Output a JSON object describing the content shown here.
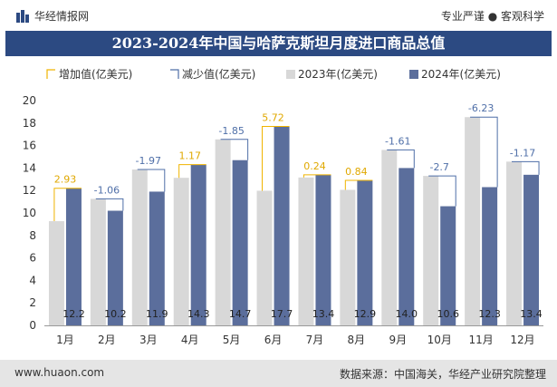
{
  "header": {
    "brand": "华经情报网",
    "tagline": "专业严谨 ● 客观科学"
  },
  "title": "2023-2024年中国与哈萨克斯坦月度进口商品总值",
  "footer": {
    "url": "www.huaon.com",
    "source": "数据来源：中国海关，华经产业研究院整理"
  },
  "colors": {
    "bar2023": "#d8d8d8",
    "bar2024": "#5b6e9c",
    "increase": "#f0b400",
    "decrease": "#4f6fa8",
    "title_bg": "#2c4a82"
  },
  "chart_data": {
    "type": "bar",
    "categories": [
      "1月",
      "2月",
      "3月",
      "4月",
      "5月",
      "6月",
      "7月",
      "8月",
      "9月",
      "10月",
      "11月",
      "12月"
    ],
    "legend": [
      "增加值(亿美元)",
      "减少值(亿美元)",
      "2023年(亿美元)",
      "2024年(亿美元)"
    ],
    "series": [
      {
        "name": "2023年(亿美元)",
        "values": [
          9.27,
          11.26,
          13.87,
          13.13,
          16.55,
          11.98,
          13.16,
          12.06,
          15.61,
          13.3,
          18.53,
          14.57
        ]
      },
      {
        "name": "2024年(亿美元)",
        "values": [
          12.2,
          10.2,
          11.9,
          14.3,
          14.7,
          17.7,
          13.4,
          12.9,
          14.0,
          10.6,
          12.3,
          13.4
        ]
      }
    ],
    "change_labels": [
      "2.93",
      "-1.06",
      "-1.97",
      "1.17",
      "-1.85",
      "5.72",
      "0.24",
      "0.84",
      "-1.61",
      "-2.7",
      "-6.23",
      "-1.17"
    ],
    "value_labels": [
      "12.2",
      "10.2",
      "11.9",
      "14.3",
      "14.7",
      "17.7",
      "13.4",
      "12.9",
      "14.0",
      "10.6",
      "12.3",
      "13.4"
    ],
    "yticks": [
      0,
      2,
      4,
      6,
      8,
      10,
      12,
      14,
      16,
      18,
      20
    ],
    "ylim": [
      0,
      20
    ],
    "grid": false,
    "legend_position": "top"
  }
}
